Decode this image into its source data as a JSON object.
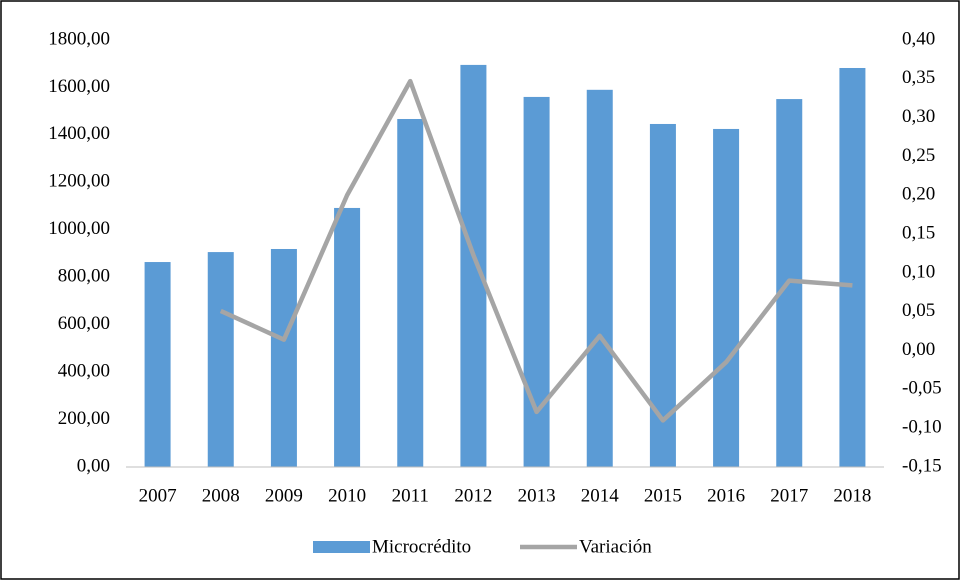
{
  "chart_data": {
    "type": "bar_line",
    "categories": [
      "2007",
      "2008",
      "2009",
      "2010",
      "2011",
      "2012",
      "2013",
      "2014",
      "2015",
      "2016",
      "2017",
      "2018"
    ],
    "series": [
      {
        "name": "Microcrédito",
        "color": "#5b9bd5",
        "type": "bar",
        "values": [
          864,
          906,
          919,
          1092,
          1467,
          1695,
          1560,
          1590,
          1446,
          1425,
          1551,
          1682
        ]
      },
      {
        "name": "Variación",
        "color": "#a5a5a5",
        "type": "line",
        "axis": "y2",
        "values": [
          null,
          0.051,
          0.014,
          0.2,
          0.347,
          0.123,
          -0.079,
          0.019,
          -0.09,
          -0.015,
          0.09,
          0.084
        ]
      }
    ],
    "ylim": [
      0,
      1800
    ],
    "yticks": [
      {
        "value": 0,
        "label": "0,00"
      },
      {
        "value": 200,
        "label": "200,00"
      },
      {
        "value": 400,
        "label": "400,00"
      },
      {
        "value": 600,
        "label": "600,00"
      },
      {
        "value": 800,
        "label": "800,00"
      },
      {
        "value": 1000,
        "label": "1000,00"
      },
      {
        "value": 1200,
        "label": "1200,00"
      },
      {
        "value": 1400,
        "label": "1400,00"
      },
      {
        "value": 1600,
        "label": "1600,00"
      },
      {
        "value": 1800,
        "label": "1800,00"
      }
    ],
    "y2lim": [
      -0.15,
      0.4
    ],
    "y2ticks": [
      {
        "value": -0.15,
        "label": "-0,15"
      },
      {
        "value": -0.1,
        "label": "-0,10"
      },
      {
        "value": -0.05,
        "label": "-0,05"
      },
      {
        "value": 0,
        "label": "0,00"
      },
      {
        "value": 0.05,
        "label": "0,05"
      },
      {
        "value": 0.1,
        "label": "0,10"
      },
      {
        "value": 0.15,
        "label": "0,15"
      },
      {
        "value": 0.2,
        "label": "0,20"
      },
      {
        "value": 0.25,
        "label": "0,25"
      },
      {
        "value": 0.3,
        "label": "0,30"
      },
      {
        "value": 0.35,
        "label": "0,35"
      },
      {
        "value": 0.4,
        "label": "0,40"
      }
    ],
    "grid": false,
    "legend": "bottom"
  }
}
